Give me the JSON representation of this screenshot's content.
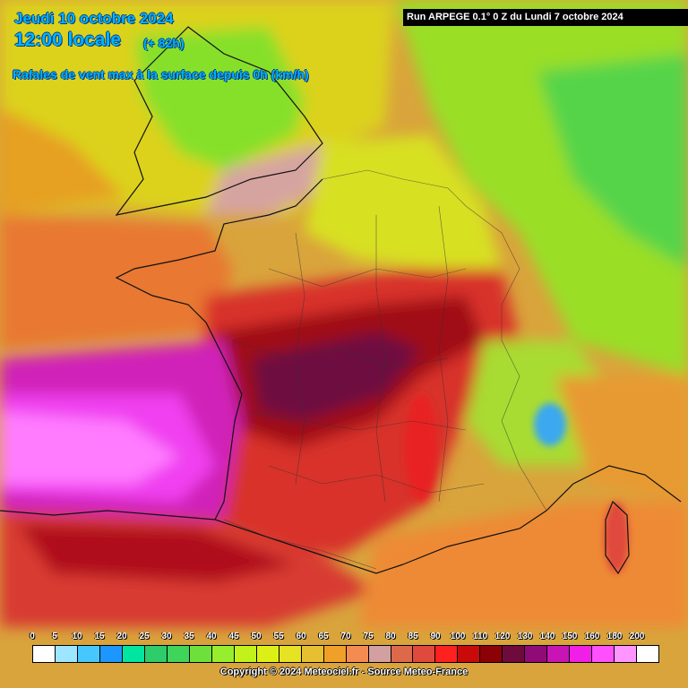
{
  "header": {
    "date": "Jeudi 10 octobre 2024",
    "time": "12:00 locale",
    "lead": "(+ 82h)",
    "parameter": "Rafales de vent max à la surface depuis 0h (km/h)"
  },
  "run_label": "Run ARPEGE 0.1° 0 Z du Lundi 7 octobre 2024",
  "legend": {
    "values": [
      "0",
      "5",
      "10",
      "15",
      "20",
      "25",
      "30",
      "35",
      "40",
      "45",
      "50",
      "55",
      "60",
      "65",
      "70",
      "75",
      "80",
      "85",
      "90",
      "100",
      "110",
      "120",
      "130",
      "140",
      "150",
      "160",
      "180",
      "200"
    ],
    "colors": [
      "#ffffff",
      "#9ee6ff",
      "#46c8ff",
      "#1e96ff",
      "#00e6a0",
      "#2ecc6a",
      "#3fd45a",
      "#6de03c",
      "#96ee2c",
      "#c2f21c",
      "#dcf018",
      "#e6e224",
      "#e6c030",
      "#f0a028",
      "#f48c52",
      "#d2a0a0",
      "#dc6a4a",
      "#e04a3c",
      "#ff2020",
      "#c80a0a",
      "#8c0008",
      "#6e0a3c",
      "#900a78",
      "#c814b4",
      "#f01ee6",
      "#ff50ff",
      "#ff96ff",
      "#ffffff"
    ]
  },
  "copyright": "Copyright © 2024 Meteociel.fr - Source Meteo-France"
}
